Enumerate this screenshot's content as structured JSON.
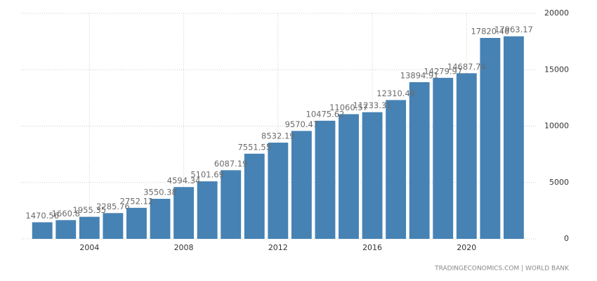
{
  "chart_data": {
    "type": "bar",
    "x": [
      2002,
      2003,
      2004,
      2005,
      2006,
      2007,
      2008,
      2009,
      2010,
      2011,
      2012,
      2013,
      2014,
      2015,
      2016,
      2017,
      2018,
      2019,
      2020,
      2021,
      2022
    ],
    "values": [
      1470.56,
      1660.8,
      1955.35,
      2285.76,
      2752.12,
      3550.38,
      4594.34,
      5101.69,
      6087.19,
      7551.55,
      8532.19,
      9570.47,
      10475.62,
      11060.57,
      11233.31,
      12310.49,
      13894.91,
      14279.97,
      14687.74,
      17820.46,
      17963.17
    ],
    "color": "#4682b4",
    "xlim": [
      2001.1,
      2023
    ],
    "xticks": [
      2004,
      2008,
      2012,
      2016,
      2020
    ],
    "ylim": [
      0,
      20000
    ],
    "yticks": [
      0,
      5000,
      10000,
      15000,
      20000
    ],
    "grid": true,
    "source": "TRADINGECONOMICS.COM | WORLD BANK"
  }
}
